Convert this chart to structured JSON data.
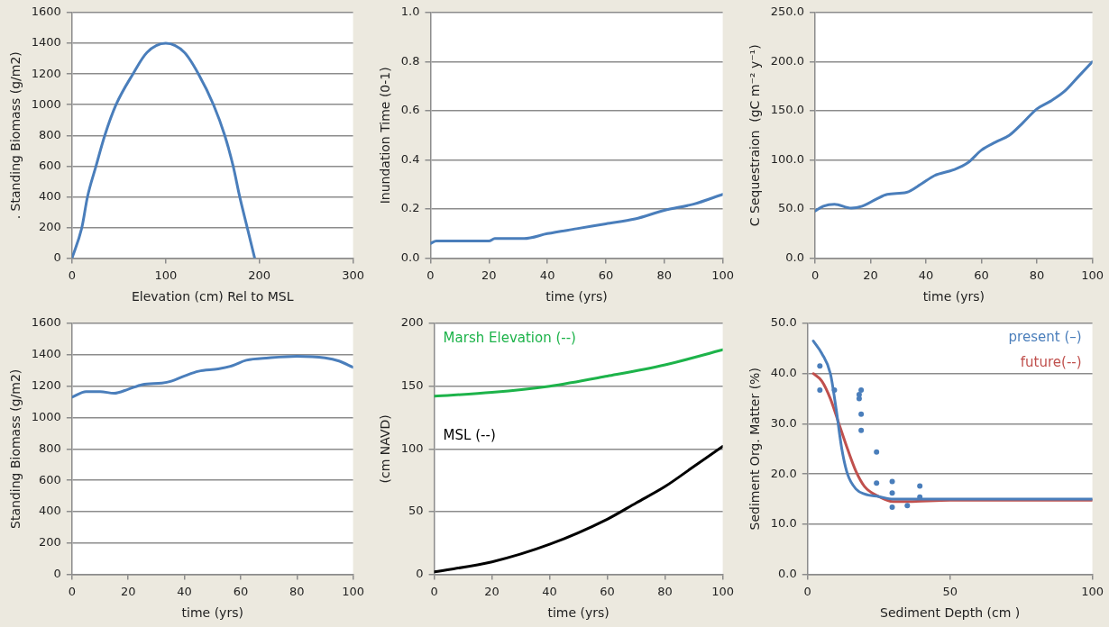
{
  "chart_data": [
    {
      "type": "line",
      "xlabel": "Elevation (cm) Rel to MSL",
      "ylabel": ". Standing Biomass (g/m2)",
      "xlim": [
        0,
        300
      ],
      "xticks": [
        0,
        100,
        200,
        300
      ],
      "ylim": [
        0,
        1600
      ],
      "yticks": [
        0,
        200,
        400,
        600,
        800,
        1000,
        1200,
        1400,
        1600
      ],
      "grid": "y",
      "series": [
        {
          "color": "#4a7ebb",
          "x": [
            0,
            10.5,
            16.5,
            25.6,
            35,
            47,
            65,
            80,
            100,
            120,
            135,
            151,
            163,
            172,
            179,
            187,
            195
          ],
          "values": [
            0,
            200,
            400,
            600,
            800,
            1000,
            1200,
            1340,
            1400,
            1340,
            1200,
            1000,
            800,
            600,
            400,
            200,
            0
          ]
        }
      ]
    },
    {
      "type": "line",
      "xlabel": "time (yrs)",
      "ylabel": "Inundation Time (0-1)",
      "xlim": [
        0,
        100
      ],
      "xticks": [
        0,
        20,
        40,
        60,
        80,
        100
      ],
      "ylim": [
        0,
        1
      ],
      "yticks": [
        {
          "value": 0,
          "label": "0.0"
        },
        {
          "value": 0.2,
          "label": "0.2"
        },
        {
          "value": 0.4,
          "label": "0.4"
        },
        {
          "value": 0.6,
          "label": "0.6"
        },
        {
          "value": 0.8,
          "label": "0.8"
        },
        {
          "value": 1,
          "label": "1.0"
        }
      ],
      "grid": "y",
      "series": [
        {
          "color": "#4a7ebb",
          "x": [
            0,
            2,
            20,
            22,
            32,
            40,
            50,
            60,
            70,
            80,
            90,
            100
          ],
          "values": [
            0.06,
            0.07,
            0.07,
            0.08,
            0.08,
            0.1,
            0.12,
            0.14,
            0.16,
            0.195,
            0.22,
            0.26
          ]
        }
      ]
    },
    {
      "type": "line",
      "xlabel": "time (yrs)",
      "ylabel": "C Sequestraion  (gC m⁻² y⁻¹)",
      "xlim": [
        0,
        100
      ],
      "xticks": [
        0,
        20,
        40,
        60,
        80,
        100
      ],
      "ylim": [
        0,
        250
      ],
      "yticks": [
        {
          "value": 0,
          "label": "0.0"
        },
        {
          "value": 50,
          "label": "50.0"
        },
        {
          "value": 100,
          "label": "100.0"
        },
        {
          "value": 150,
          "label": "150.0"
        },
        {
          "value": 200,
          "label": "200.0"
        },
        {
          "value": 250,
          "label": "250.0"
        }
      ],
      "grid": "y",
      "series": [
        {
          "color": "#4a7ebb",
          "x": [
            0,
            3,
            7,
            13,
            17,
            22,
            26,
            33,
            38,
            43,
            50,
            55,
            60,
            65,
            70,
            75,
            80,
            85,
            90,
            95,
            100
          ],
          "values": [
            48,
            53,
            55,
            51,
            53,
            60,
            65,
            67,
            75,
            84,
            90,
            97,
            110,
            118,
            125,
            138,
            152,
            160,
            170,
            185,
            200
          ]
        }
      ]
    },
    {
      "type": "line",
      "xlabel": "time (yrs)",
      "ylabel": "Standing Biomass (g/m2)",
      "xlim": [
        0,
        100
      ],
      "xticks": [
        0,
        20,
        40,
        60,
        80,
        100
      ],
      "ylim": [
        0,
        1600
      ],
      "yticks": [
        0,
        200,
        400,
        600,
        800,
        1000,
        1200,
        1400,
        1600
      ],
      "grid": "y",
      "series": [
        {
          "color": "#4a7ebb",
          "x": [
            0,
            5,
            10,
            15,
            20,
            25,
            32,
            35,
            40,
            45,
            52,
            57,
            62,
            70,
            80,
            90,
            95,
            100
          ],
          "values": [
            1130,
            1165,
            1165,
            1155,
            1180,
            1210,
            1220,
            1230,
            1265,
            1295,
            1310,
            1330,
            1365,
            1380,
            1390,
            1380,
            1360,
            1320
          ]
        }
      ]
    },
    {
      "type": "line",
      "xlabel": "time (yrs)",
      "ylabel": "(cm NAVD)",
      "xlim": [
        0,
        100
      ],
      "xticks": [
        0,
        20,
        40,
        60,
        80,
        100
      ],
      "ylim": [
        0,
        200
      ],
      "yticks": [
        0,
        50,
        100,
        150,
        200
      ],
      "grid": "y",
      "series": [
        {
          "name": "Marsh Elevation (--)",
          "color": "#1db34a",
          "x": [
            0,
            20,
            40,
            60,
            80,
            100
          ],
          "values": [
            142,
            145,
            150,
            158,
            167,
            179
          ]
        },
        {
          "name": "MSL (--)",
          "color": "#000000",
          "x": [
            0,
            20,
            40,
            60,
            70,
            80,
            90,
            100
          ],
          "values": [
            2,
            10,
            24,
            44,
            57,
            70,
            86,
            102
          ]
        }
      ]
    },
    {
      "type": "line",
      "xlabel": "Sediment Depth (cm )",
      "ylabel": "Sediment Org. Matter (%)",
      "xlim": [
        0,
        100
      ],
      "xticks": [
        0,
        50,
        100
      ],
      "ylim": [
        0,
        50
      ],
      "yticks": [
        {
          "value": 0,
          "label": "0.0"
        },
        {
          "value": 10,
          "label": "10.0"
        },
        {
          "value": 20,
          "label": "20.0"
        },
        {
          "value": 30,
          "label": "30.0"
        },
        {
          "value": 40,
          "label": "40.0"
        },
        {
          "value": 50,
          "label": "50.0"
        }
      ],
      "grid": "y",
      "legend": "top right",
      "marker": "none",
      "series": [
        {
          "name": "present (–)",
          "color": "#4a7ebb",
          "x": [
            2,
            5,
            8,
            10,
            12,
            14,
            17,
            20,
            25,
            30,
            40,
            100
          ],
          "values": [
            46.5,
            44,
            40,
            33,
            25,
            20,
            17,
            16,
            15.5,
            15,
            15,
            15
          ]
        },
        {
          "name": "future(--)",
          "color": "#c0504d",
          "x": [
            2,
            5,
            8,
            11,
            14,
            17,
            20,
            25,
            30,
            35,
            50,
            100
          ],
          "values": [
            40,
            38.5,
            35,
            30,
            25,
            20.5,
            17.5,
            15.5,
            14.5,
            14.5,
            14.8,
            14.8
          ]
        },
        {
          "type": "scatter",
          "marker": "circle",
          "color": "#4a7ebb",
          "x": [
            4.3,
            4.3,
            9.4,
            18.1,
            18.1,
            18.8,
            18.8,
            18.8,
            24.2,
            24.2,
            29.7,
            29.7,
            29.7,
            35,
            39.4,
            39.4
          ],
          "values": [
            41.5,
            36.7,
            36.7,
            35.8,
            35,
            36.7,
            31.9,
            28.7,
            24.4,
            18.2,
            18.5,
            16.2,
            13.4,
            13.7,
            17.6,
            15.4
          ]
        }
      ]
    }
  ]
}
